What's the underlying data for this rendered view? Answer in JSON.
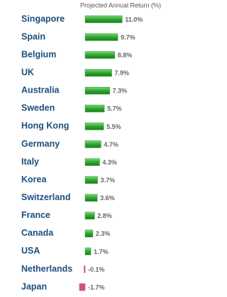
{
  "chart_data": {
    "type": "bar",
    "orientation": "horizontal",
    "title": "Projected Annual Return (%)",
    "categories": [
      "Singapore",
      "Spain",
      "Belgium",
      "UK",
      "Australia",
      "Sweden",
      "Hong Kong",
      "Germany",
      "Italy",
      "Korea",
      "Switzerland",
      "France",
      "Canada",
      "USA",
      "Netherlands",
      "Japan"
    ],
    "values": [
      11.0,
      9.7,
      8.8,
      7.9,
      7.3,
      5.7,
      5.5,
      4.7,
      4.3,
      3.7,
      3.6,
      2.8,
      2.3,
      1.7,
      -0.1,
      -1.7
    ],
    "value_labels": [
      "11.0%",
      "9.7%",
      "8.8%",
      "7.9%",
      "7.3%",
      "5.7%",
      "5.5%",
      "4.7%",
      "4.3%",
      "3.7%",
      "3.6%",
      "2.8%",
      "2.3%",
      "1.7%",
      "-0.1%",
      "-1.7%"
    ],
    "color": "#2fa52f",
    "negative_color": "#d0508a"
  }
}
